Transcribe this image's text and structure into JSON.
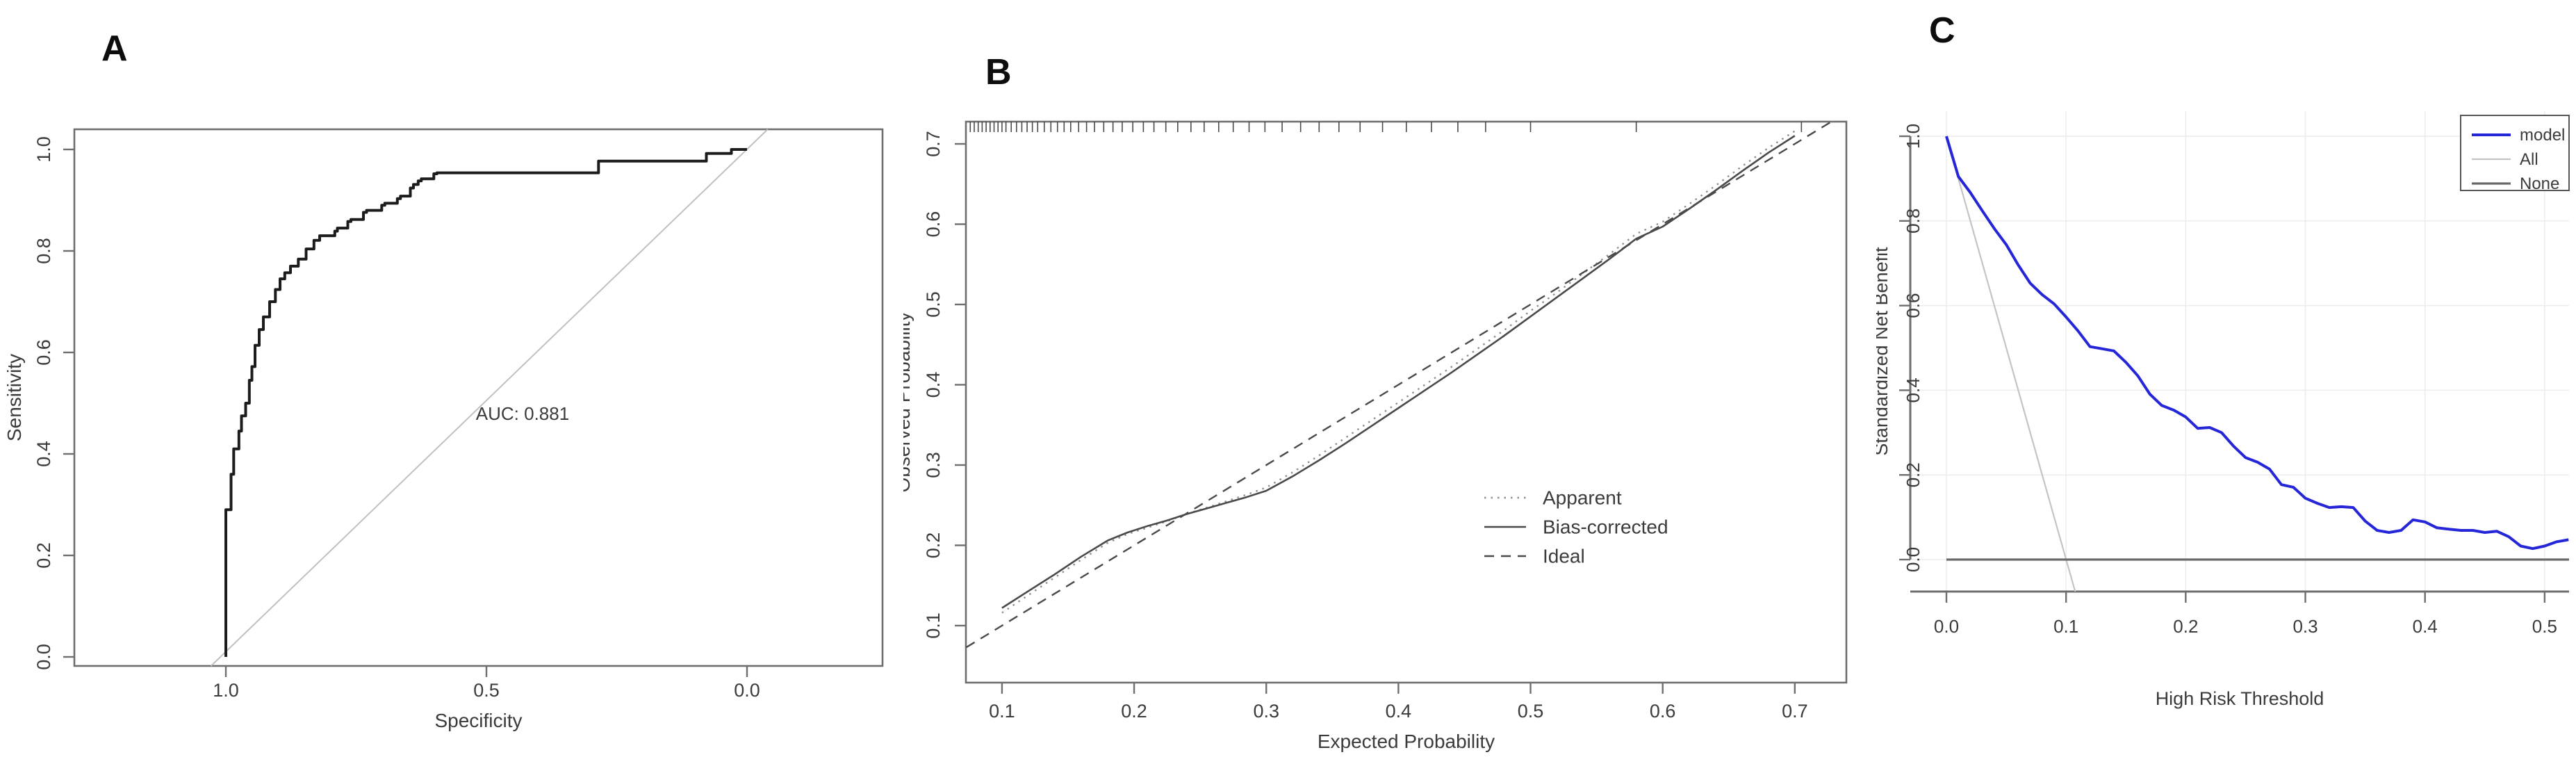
{
  "figure": {
    "background": "#ffffff",
    "text_color": "#3b3b3b",
    "axis_color": "#6e6e6e",
    "panels": [
      {
        "label": "A"
      },
      {
        "label": "B"
      },
      {
        "label": "C"
      }
    ]
  },
  "chart_data": [
    {
      "panel": "A",
      "type": "line",
      "title": "",
      "xlabel": "Specificity",
      "ylabel": "Sensitivity",
      "x_axis_reversed": true,
      "xlim": [
        1.2907,
        -0.26
      ],
      "ylim": [
        -0.0178,
        1.0397
      ],
      "x_ticks": [
        "1.0",
        "0.5",
        "0.0"
      ],
      "x_tick_values": [
        1.0,
        0.5,
        0.0
      ],
      "y_ticks": [
        "0.0",
        "0.2",
        "0.4",
        "0.6",
        "0.8",
        "1.0"
      ],
      "y_tick_values": [
        0.0,
        0.2,
        0.4,
        0.6,
        0.8,
        1.0
      ],
      "grid": false,
      "annotation": {
        "text": "AUC: 0.881",
        "x": 0.4307,
        "y": 0.467
      },
      "series": [
        {
          "name": "chance-line",
          "color": "#c0c0c0",
          "width": 2,
          "style": "solid",
          "x": [
            1.0284,
            -0.0397
          ],
          "y": [
            -0.0178,
            1.0397
          ]
        },
        {
          "name": "roc-curve",
          "color": "#1c1c1c",
          "width": 4,
          "style": "solid",
          "step": "vh",
          "x": [
            1.0,
            0.99,
            0.985,
            0.975,
            0.97,
            0.962,
            0.955,
            0.95,
            0.944,
            0.936,
            0.928,
            0.916,
            0.905,
            0.896,
            0.887,
            0.876,
            0.861,
            0.846,
            0.831,
            0.82,
            0.791,
            0.786,
            0.766,
            0.76,
            0.736,
            0.73,
            0.701,
            0.695,
            0.671,
            0.665,
            0.646,
            0.64,
            0.631,
            0.625,
            0.601,
            0.595,
            0.589,
            0.285,
            0.28,
            0.078,
            0.073,
            0.03,
            0.025,
            0.0
          ],
          "y": [
            0.0,
            0.29,
            0.36,
            0.41,
            0.445,
            0.475,
            0.5,
            0.545,
            0.572,
            0.614,
            0.645,
            0.67,
            0.7,
            0.724,
            0.745,
            0.757,
            0.77,
            0.784,
            0.804,
            0.821,
            0.83,
            0.839,
            0.845,
            0.858,
            0.862,
            0.876,
            0.88,
            0.89,
            0.894,
            0.903,
            0.908,
            0.924,
            0.931,
            0.938,
            0.942,
            0.952,
            0.954,
            0.954,
            0.977,
            0.977,
            0.992,
            0.992,
            1.0,
            1.0
          ]
        }
      ]
    },
    {
      "panel": "B",
      "type": "line",
      "title": "",
      "xlabel": "Expected Probability",
      "ylabel": "Observed Probability",
      "xlim": [
        0.0727,
        0.739
      ],
      "ylim": [
        0.029,
        0.7277
      ],
      "x_ticks": [
        "0.1",
        "0.2",
        "0.3",
        "0.4",
        "0.5",
        "0.6",
        "0.7"
      ],
      "x_tick_values": [
        0.1,
        0.2,
        0.3,
        0.4,
        0.5,
        0.6,
        0.7
      ],
      "y_ticks": [
        "0.1",
        "0.2",
        "0.3",
        "0.4",
        "0.5",
        "0.6",
        "0.7"
      ],
      "y_tick_values": [
        0.1,
        0.2,
        0.3,
        0.4,
        0.5,
        0.6,
        0.7
      ],
      "grid": false,
      "rug_x": [
        0.076,
        0.079,
        0.082,
        0.085,
        0.088,
        0.091,
        0.094,
        0.097,
        0.1,
        0.103,
        0.107,
        0.111,
        0.115,
        0.119,
        0.123,
        0.127,
        0.132,
        0.137,
        0.142,
        0.147,
        0.152,
        0.158,
        0.164,
        0.17,
        0.177,
        0.184,
        0.191,
        0.199,
        0.207,
        0.215,
        0.224,
        0.233,
        0.243,
        0.253,
        0.264,
        0.275,
        0.287,
        0.299,
        0.312,
        0.326,
        0.34,
        0.355,
        0.371,
        0.388,
        0.406,
        0.425,
        0.445,
        0.466,
        0.5,
        0.58,
        0.705
      ],
      "series": [
        {
          "name": "apparent",
          "color": "#8f8f8f",
          "width": 2.4,
          "style": "dotted",
          "x": [
            0.1,
            0.12,
            0.14,
            0.16,
            0.18,
            0.195,
            0.21,
            0.225,
            0.24,
            0.255,
            0.27,
            0.285,
            0.3,
            0.32,
            0.34,
            0.36,
            0.38,
            0.4,
            0.42,
            0.44,
            0.46,
            0.48,
            0.5,
            0.52,
            0.54,
            0.56,
            0.58,
            0.6,
            0.62,
            0.64,
            0.66,
            0.68,
            0.7
          ],
          "y": [
            0.116,
            0.138,
            0.16,
            0.182,
            0.203,
            0.214,
            0.222,
            0.23,
            0.239,
            0.247,
            0.255,
            0.263,
            0.272,
            0.291,
            0.312,
            0.334,
            0.356,
            0.378,
            0.4,
            0.422,
            0.445,
            0.468,
            0.492,
            0.515,
            0.539,
            0.563,
            0.588,
            0.603,
            0.625,
            0.648,
            0.672,
            0.695,
            0.716
          ]
        },
        {
          "name": "bias-corrected",
          "color": "#4a4a4a",
          "width": 2.6,
          "style": "solid",
          "x": [
            0.1,
            0.12,
            0.14,
            0.16,
            0.18,
            0.195,
            0.21,
            0.225,
            0.24,
            0.255,
            0.27,
            0.285,
            0.3,
            0.32,
            0.34,
            0.36,
            0.38,
            0.4,
            0.42,
            0.44,
            0.46,
            0.48,
            0.5,
            0.52,
            0.54,
            0.56,
            0.58,
            0.6,
            0.62,
            0.64,
            0.66,
            0.68,
            0.7
          ],
          "y": [
            0.122,
            0.143,
            0.164,
            0.186,
            0.206,
            0.216,
            0.224,
            0.231,
            0.239,
            0.246,
            0.253,
            0.26,
            0.268,
            0.286,
            0.306,
            0.327,
            0.349,
            0.371,
            0.393,
            0.415,
            0.438,
            0.461,
            0.485,
            0.509,
            0.533,
            0.557,
            0.582,
            0.597,
            0.619,
            0.642,
            0.666,
            0.689,
            0.71
          ]
        },
        {
          "name": "ideal",
          "color": "#4a4a4a",
          "width": 2.4,
          "style": "dashed",
          "x": [
            0.073,
            0.7277
          ],
          "y": [
            0.073,
            0.7277
          ]
        }
      ],
      "legend": {
        "boxed": false,
        "items": [
          {
            "label": "Apparent",
            "color": "#8f8f8f",
            "style": "dotted",
            "width": 2.4
          },
          {
            "label": "Bias-corrected",
            "color": "#4a4a4a",
            "style": "solid",
            "width": 2.6
          },
          {
            "label": "Ideal",
            "color": "#4a4a4a",
            "style": "dashed",
            "width": 2.4
          }
        ]
      }
    },
    {
      "panel": "C",
      "type": "line",
      "title": "",
      "xlabel": "High Risk Threshold",
      "ylabel": "Standardized Net Benefit",
      "xlim": [
        -0.0302,
        0.5204
      ],
      "ylim": [
        -0.0755,
        1.0591
      ],
      "x_ticks": [
        "0.0",
        "0.1",
        "0.2",
        "0.3",
        "0.4",
        "0.5"
      ],
      "x_tick_values": [
        0.0,
        0.1,
        0.2,
        0.3,
        0.4,
        0.5
      ],
      "y_ticks": [
        "0.0",
        "0.2",
        "0.4",
        "0.6",
        "0.8",
        "1.0"
      ],
      "y_tick_values": [
        0.0,
        0.2,
        0.4,
        0.6,
        0.8,
        1.0
      ],
      "grid": true,
      "grid_color": "#ececec",
      "series": [
        {
          "name": "all-line",
          "color": "#c4c4c4",
          "width": 2.2,
          "style": "solid",
          "x": [
            0.0,
            0.1076
          ],
          "y": [
            1.0,
            -0.0755
          ]
        },
        {
          "name": "none-line",
          "color": "#6a6a6a",
          "width": 3.2,
          "style": "solid",
          "x": [
            0.0,
            0.5204
          ],
          "y": [
            0.0,
            0.0
          ]
        },
        {
          "name": "model-line",
          "color": "#2626d9",
          "width": 4,
          "style": "solid",
          "x": [
            0.0,
            0.01,
            0.02,
            0.03,
            0.04,
            0.05,
            0.06,
            0.07,
            0.08,
            0.09,
            0.1,
            0.11,
            0.12,
            0.13,
            0.14,
            0.15,
            0.16,
            0.17,
            0.18,
            0.19,
            0.2,
            0.21,
            0.22,
            0.23,
            0.24,
            0.25,
            0.26,
            0.27,
            0.28,
            0.29,
            0.3,
            0.31,
            0.32,
            0.33,
            0.34,
            0.35,
            0.36,
            0.37,
            0.38,
            0.39,
            0.4,
            0.41,
            0.42,
            0.43,
            0.44,
            0.45,
            0.46,
            0.47,
            0.48,
            0.49,
            0.5,
            0.51,
            0.52
          ],
          "y": [
            1.0,
            0.905,
            0.867,
            0.824,
            0.782,
            0.744,
            0.696,
            0.653,
            0.626,
            0.604,
            0.573,
            0.54,
            0.503,
            0.498,
            0.493,
            0.466,
            0.434,
            0.391,
            0.364,
            0.353,
            0.337,
            0.31,
            0.312,
            0.3,
            0.268,
            0.241,
            0.23,
            0.214,
            0.177,
            0.171,
            0.145,
            0.133,
            0.123,
            0.125,
            0.123,
            0.091,
            0.069,
            0.064,
            0.069,
            0.094,
            0.089,
            0.075,
            0.072,
            0.069,
            0.069,
            0.064,
            0.067,
            0.054,
            0.032,
            0.026,
            0.032,
            0.042,
            0.047
          ]
        }
      ],
      "legend": {
        "boxed": true,
        "items": [
          {
            "label": "model",
            "color": "#2626d9",
            "style": "solid",
            "width": 4
          },
          {
            "label": "All",
            "color": "#c4c4c4",
            "style": "solid",
            "width": 2.2
          },
          {
            "label": "None",
            "color": "#6a6a6a",
            "style": "solid",
            "width": 3.2
          }
        ]
      }
    }
  ]
}
